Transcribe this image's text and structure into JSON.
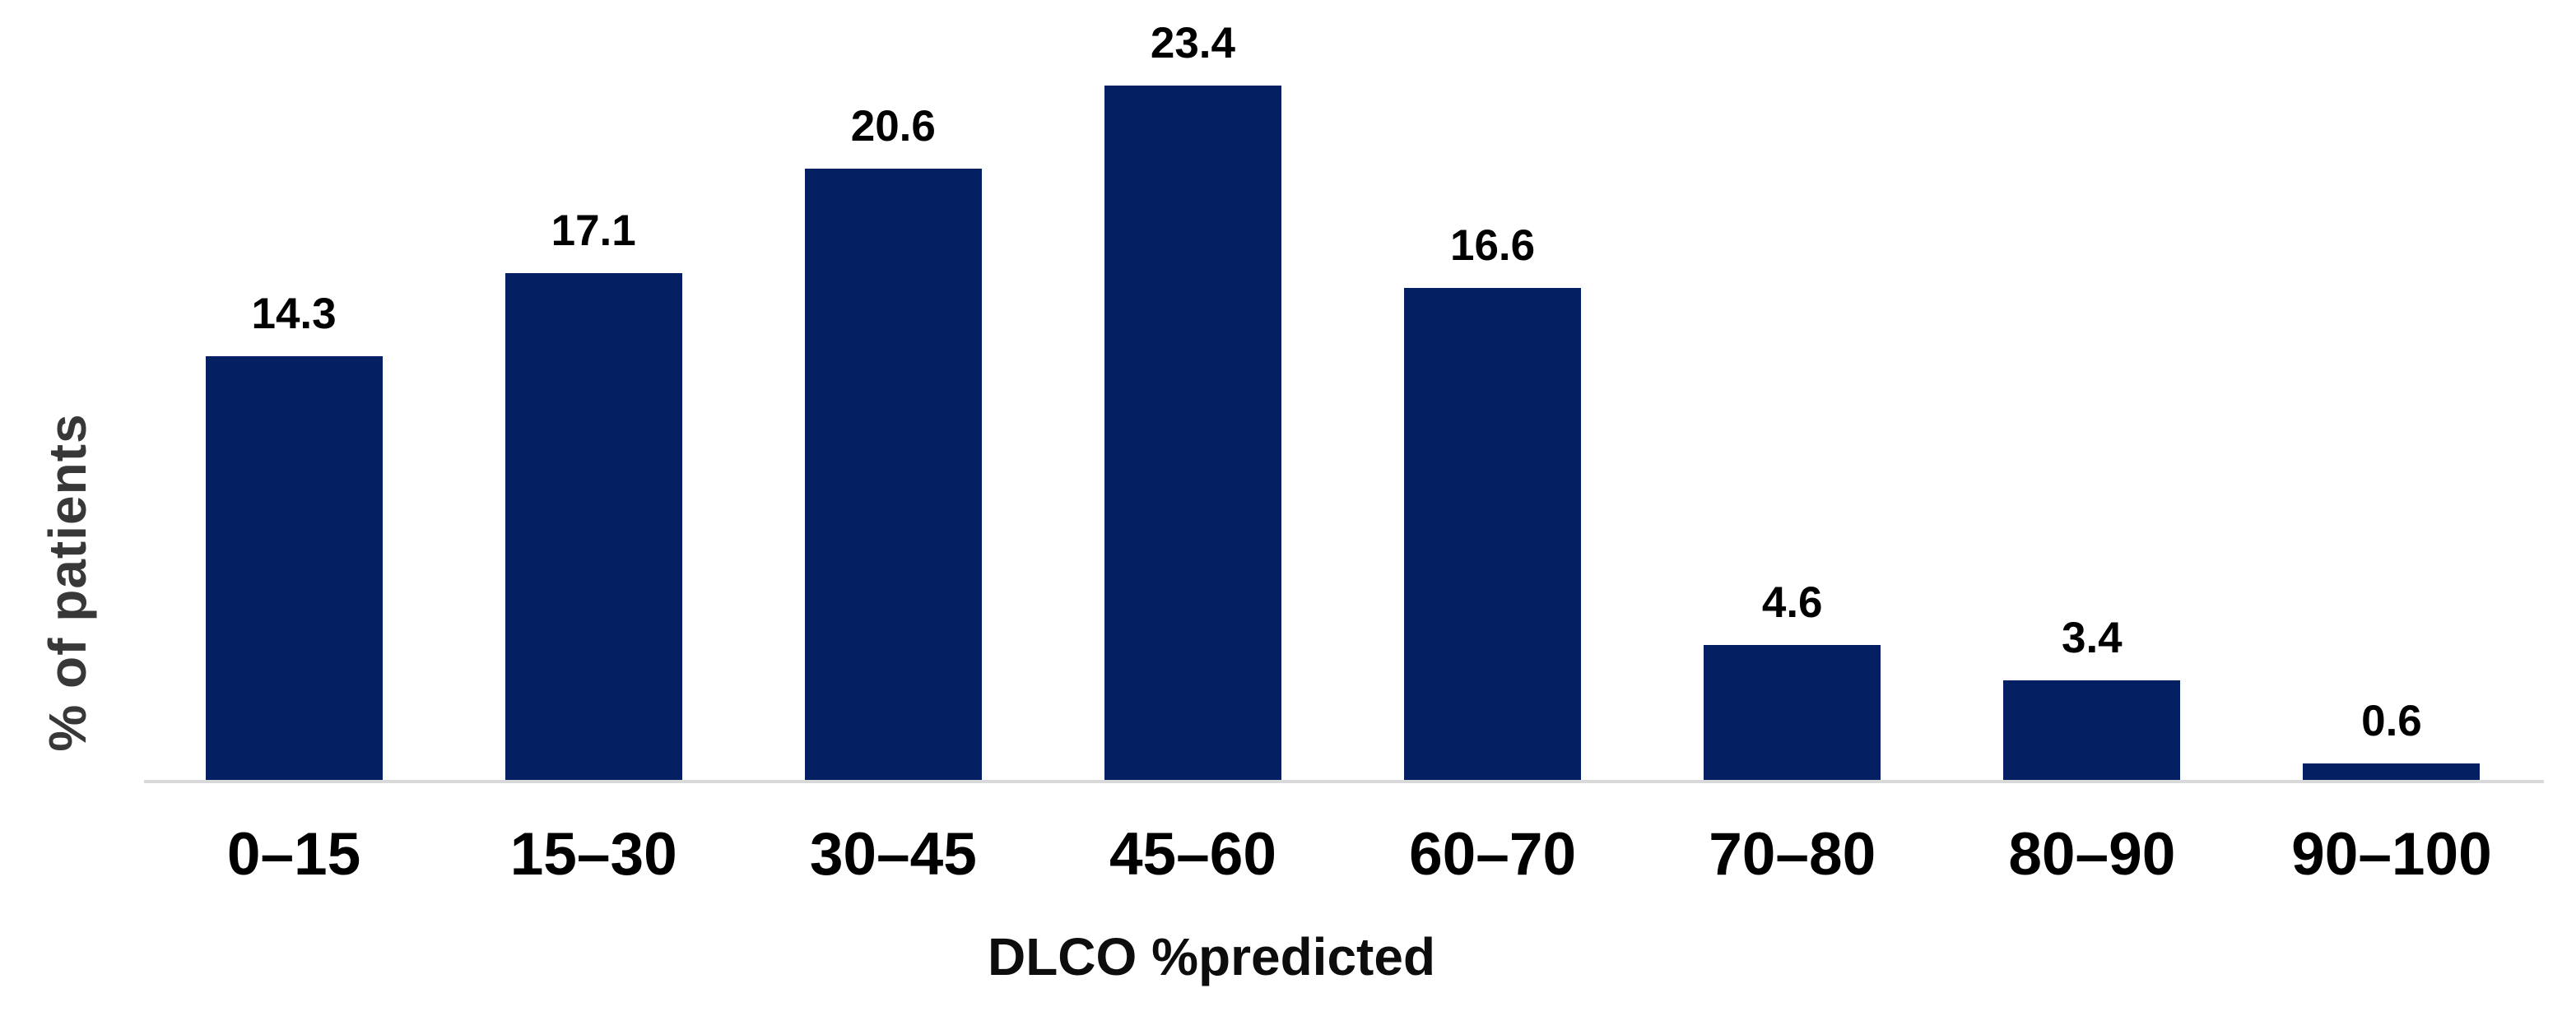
{
  "chart_data": {
    "type": "bar",
    "categories": [
      "0–15",
      "15–30",
      "30–45",
      "45–60",
      "60–70",
      "70–80",
      "80–90",
      "90–100"
    ],
    "values": [
      14.3,
      17.1,
      20.6,
      23.4,
      16.6,
      4.6,
      3.4,
      0.6
    ],
    "value_labels": [
      "14.3",
      "17.1",
      "20.6",
      "23.4",
      "16.6",
      "4.6",
      "3.4",
      "0.6"
    ],
    "title": "",
    "xlabel": "DLCO %predicted",
    "ylabel": "% of patients",
    "ylim": [
      0,
      26.3
    ],
    "grid": false,
    "legend_position": "none",
    "y_axis_ticks_visible": false,
    "colors": {
      "bar": "#041f62",
      "axis_line": "#d9d9d9",
      "value_label": "#000000",
      "tick_label": "#000000",
      "axis_title": "#383838"
    }
  }
}
